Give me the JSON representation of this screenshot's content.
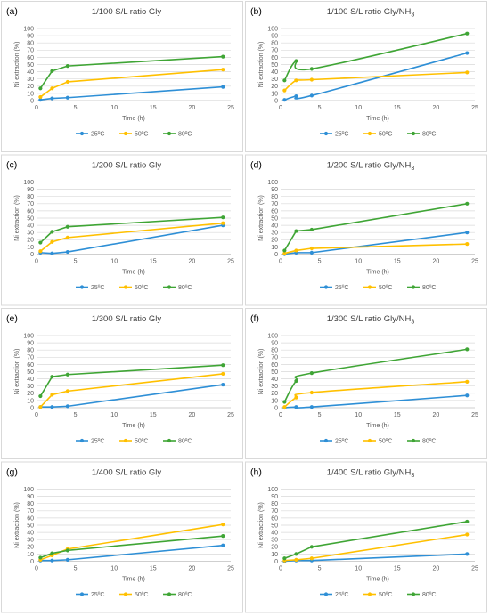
{
  "colors": {
    "s25": "#2e8fd6",
    "s50": "#ffc000",
    "s80": "#3fa535"
  },
  "chart_data": [
    {
      "panel": "(a)",
      "title": "1/100  S/L ratio Gly",
      "type": "line",
      "xlabel": "Time (h)",
      "ylabel": "Ni extraction (%)",
      "xlim": [
        0,
        25
      ],
      "ylim": [
        0,
        100
      ],
      "xticks": [
        0,
        5,
        10,
        15,
        20,
        25
      ],
      "yticks": [
        0,
        10,
        20,
        30,
        40,
        50,
        60,
        70,
        80,
        90,
        100
      ],
      "grid": true,
      "legend": "bottom",
      "smooth": false,
      "x": [
        0.5,
        2,
        4,
        24
      ],
      "series": [
        {
          "name": "25ºC",
          "color": "s25",
          "values": [
            1,
            3,
            4,
            19
          ]
        },
        {
          "name": "50ºC",
          "color": "s50",
          "values": [
            5,
            17,
            26,
            43
          ]
        },
        {
          "name": "80ºC",
          "color": "s80",
          "values": [
            17,
            41,
            48,
            61
          ]
        }
      ]
    },
    {
      "panel": "(b)",
      "title": "1/100  S/L ratio Gly/NH3",
      "type": "line",
      "xlabel": "Time (h)",
      "ylabel": "Ni extraction (%)",
      "xlim": [
        0,
        25
      ],
      "ylim": [
        0,
        100
      ],
      "xticks": [
        0,
        5,
        10,
        15,
        20,
        25
      ],
      "yticks": [
        0,
        10,
        20,
        30,
        40,
        50,
        60,
        70,
        80,
        90,
        100
      ],
      "grid": true,
      "legend": "bottom",
      "smooth": true,
      "x": [
        0.5,
        2,
        4,
        24
      ],
      "series": [
        {
          "name": "25ºC",
          "color": "s25",
          "values": [
            1,
            6,
            7,
            66
          ]
        },
        {
          "name": "50ºC",
          "color": "s50",
          "values": [
            14,
            28,
            29,
            39
          ]
        },
        {
          "name": "80ºC",
          "color": "s80",
          "values": [
            28,
            55,
            44,
            93
          ]
        }
      ]
    },
    {
      "panel": "(c)",
      "title": "1/200  S/L ratio Gly",
      "type": "line",
      "xlabel": "Time (h)",
      "ylabel": "Ni extraction (%)",
      "xlim": [
        0,
        25
      ],
      "ylim": [
        0,
        100
      ],
      "xticks": [
        0,
        5,
        10,
        15,
        20,
        25
      ],
      "yticks": [
        0,
        10,
        20,
        30,
        40,
        50,
        60,
        70,
        80,
        90,
        100
      ],
      "grid": true,
      "legend": "bottom",
      "smooth": false,
      "x": [
        0.5,
        2,
        4,
        24
      ],
      "series": [
        {
          "name": "25ºC",
          "color": "s25",
          "values": [
            2,
            1,
            3,
            40
          ]
        },
        {
          "name": "50ºC",
          "color": "s50",
          "values": [
            4,
            17,
            23,
            43
          ]
        },
        {
          "name": "80ºC",
          "color": "s80",
          "values": [
            16,
            31,
            38,
            51
          ]
        }
      ]
    },
    {
      "panel": "(d)",
      "title": "1/200  S/L ratio Gly/NH3",
      "type": "line",
      "xlabel": "Time (h)",
      "ylabel": "Ni extraction (%)",
      "xlim": [
        0,
        25
      ],
      "ylim": [
        0,
        100
      ],
      "xticks": [
        0,
        5,
        10,
        15,
        20,
        25
      ],
      "yticks": [
        0,
        10,
        20,
        30,
        40,
        50,
        60,
        70,
        80,
        90,
        100
      ],
      "grid": true,
      "legend": "bottom",
      "smooth": false,
      "x": [
        0.5,
        2,
        4,
        24
      ],
      "series": [
        {
          "name": "25ºC",
          "color": "s25",
          "values": [
            0,
            2,
            2,
            30
          ]
        },
        {
          "name": "50ºC",
          "color": "s50",
          "values": [
            1,
            5,
            8,
            14
          ]
        },
        {
          "name": "80ºC",
          "color": "s80",
          "values": [
            5,
            32,
            34,
            70
          ]
        }
      ]
    },
    {
      "panel": "(e)",
      "title": "1/300  S/L ratio Gly",
      "type": "line",
      "xlabel": "Time (h)",
      "ylabel": "Ni extraction (%)",
      "xlim": [
        0,
        25
      ],
      "ylim": [
        0,
        100
      ],
      "xticks": [
        0,
        5,
        10,
        15,
        20,
        25
      ],
      "yticks": [
        0,
        10,
        20,
        30,
        40,
        50,
        60,
        70,
        80,
        90,
        100
      ],
      "grid": true,
      "legend": "bottom",
      "smooth": false,
      "x": [
        0.5,
        2,
        4,
        24
      ],
      "series": [
        {
          "name": "25ºC",
          "color": "s25",
          "values": [
            1,
            1,
            2,
            32
          ]
        },
        {
          "name": "50ºC",
          "color": "s50",
          "values": [
            1,
            18,
            23,
            47
          ]
        },
        {
          "name": "80ºC",
          "color": "s80",
          "values": [
            16,
            43,
            46,
            59
          ]
        }
      ]
    },
    {
      "panel": "(f)",
      "title": "1/300  S/L ratio Gly/NH3",
      "type": "line",
      "xlabel": "Time (h)",
      "ylabel": "Ni extraction (%)",
      "xlim": [
        0,
        25
      ],
      "ylim": [
        0,
        100
      ],
      "xticks": [
        0,
        5,
        10,
        15,
        20,
        25
      ],
      "yticks": [
        0,
        10,
        20,
        30,
        40,
        50,
        60,
        70,
        80,
        90,
        100
      ],
      "grid": true,
      "legend": "bottom",
      "smooth": true,
      "x": [
        0.5,
        2,
        4,
        24
      ],
      "series": [
        {
          "name": "25ºC",
          "color": "s25",
          "values": [
            0,
            1,
            1,
            17
          ]
        },
        {
          "name": "50ºC",
          "color": "s50",
          "values": [
            1,
            14,
            21,
            36
          ]
        },
        {
          "name": "80ºC",
          "color": "s80",
          "values": [
            8,
            37,
            48,
            81
          ]
        }
      ]
    },
    {
      "panel": "(g)",
      "title": "1/400 S/L ratio  Gly",
      "type": "line",
      "xlabel": "Time (h)",
      "ylabel": "Ni extraction (%)",
      "xlim": [
        0,
        25
      ],
      "ylim": [
        0,
        100
      ],
      "xticks": [
        0,
        5,
        10,
        15,
        20,
        25
      ],
      "yticks": [
        0,
        10,
        20,
        30,
        40,
        50,
        60,
        70,
        80,
        90,
        100
      ],
      "grid": true,
      "legend": "bottom",
      "smooth": false,
      "x": [
        0.5,
        2,
        4,
        24
      ],
      "series": [
        {
          "name": "25ºC",
          "color": "s25",
          "values": [
            1,
            1,
            2,
            22
          ]
        },
        {
          "name": "50ºC",
          "color": "s50",
          "values": [
            2,
            8,
            17,
            51
          ]
        },
        {
          "name": "80ºC",
          "color": "s80",
          "values": [
            5,
            11,
            15,
            35
          ]
        }
      ]
    },
    {
      "panel": "(h)",
      "title": "1/400 S/L ratio  Gly/NH3",
      "type": "line",
      "xlabel": "Time (h)",
      "ylabel": "Ni extraction (%)",
      "xlim": [
        0,
        25
      ],
      "ylim": [
        0,
        100
      ],
      "xticks": [
        0,
        5,
        10,
        15,
        20,
        25
      ],
      "yticks": [
        0,
        10,
        20,
        30,
        40,
        50,
        60,
        70,
        80,
        90,
        100
      ],
      "grid": true,
      "legend": "bottom",
      "smooth": false,
      "x": [
        0.5,
        2,
        4,
        24
      ],
      "series": [
        {
          "name": "25ºC",
          "color": "s25",
          "values": [
            0,
            1,
            1,
            10
          ]
        },
        {
          "name": "50ºC",
          "color": "s50",
          "values": [
            1,
            2,
            4,
            37
          ]
        },
        {
          "name": "80ºC",
          "color": "s80",
          "values": [
            4,
            10,
            20,
            55
          ]
        }
      ]
    }
  ]
}
